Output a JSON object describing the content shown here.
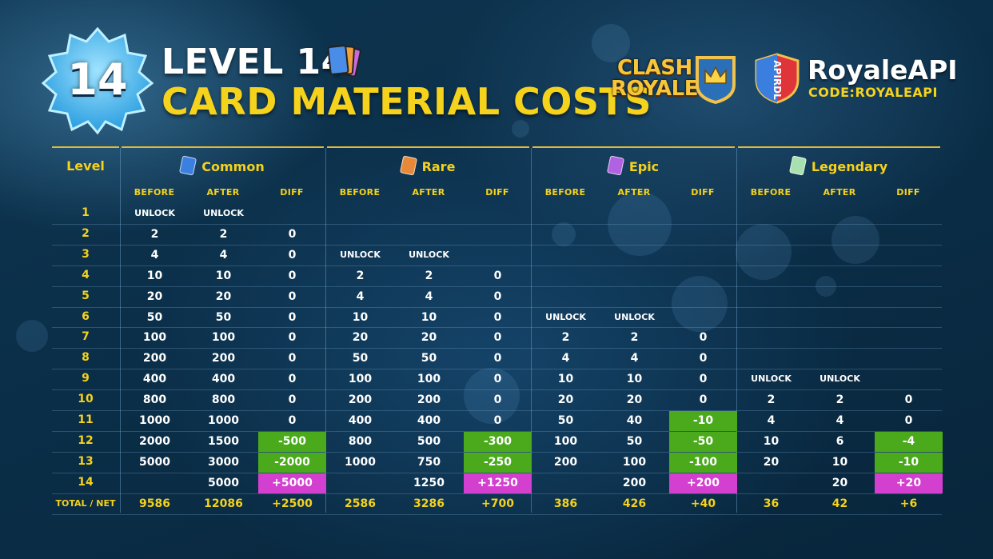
{
  "header": {
    "badge_level": "14",
    "title_line1": "LEVEL 14",
    "title_line2": "CARD MATERIAL COSTS",
    "clash_logo_line1": "CLASH",
    "clash_logo_line2": "ROYALE",
    "api_shield_text": "APIRDL",
    "api_name": "RoyaleAPI",
    "api_code": "CODE:ROYALEAPI"
  },
  "colors": {
    "accent_yellow": "#f5d21c",
    "decrease_green": "#4aaa1c",
    "increase_pink": "#d33fcf"
  },
  "table": {
    "level_header": "Level",
    "sub_headers": [
      "BEFORE",
      "AFTER",
      "DIFF"
    ],
    "groups": [
      {
        "name": "Common",
        "icon": "common-card-icon",
        "icon_color": "#3b7fe0"
      },
      {
        "name": "Rare",
        "icon": "rare-card-icon",
        "icon_color": "#e8893a"
      },
      {
        "name": "Epic",
        "icon": "epic-card-icon",
        "icon_color": "#b062e0"
      },
      {
        "name": "Legendary",
        "icon": "legendary-card-icon",
        "icon_color": "#a8e0b0"
      }
    ],
    "rows": [
      {
        "level": "1",
        "cells": [
          [
            "UNLOCK",
            "UNLOCK",
            ""
          ],
          [
            "",
            "",
            ""
          ],
          [
            "",
            "",
            ""
          ],
          [
            "",
            "",
            ""
          ]
        ]
      },
      {
        "level": "2",
        "cells": [
          [
            "2",
            "2",
            "0"
          ],
          [
            "",
            "",
            ""
          ],
          [
            "",
            "",
            ""
          ],
          [
            "",
            "",
            ""
          ]
        ]
      },
      {
        "level": "3",
        "cells": [
          [
            "4",
            "4",
            "0"
          ],
          [
            "UNLOCK",
            "UNLOCK",
            ""
          ],
          [
            "",
            "",
            ""
          ],
          [
            "",
            "",
            ""
          ]
        ]
      },
      {
        "level": "4",
        "cells": [
          [
            "10",
            "10",
            "0"
          ],
          [
            "2",
            "2",
            "0"
          ],
          [
            "",
            "",
            ""
          ],
          [
            "",
            "",
            ""
          ]
        ]
      },
      {
        "level": "5",
        "cells": [
          [
            "20",
            "20",
            "0"
          ],
          [
            "4",
            "4",
            "0"
          ],
          [
            "",
            "",
            ""
          ],
          [
            "",
            "",
            ""
          ]
        ]
      },
      {
        "level": "6",
        "cells": [
          [
            "50",
            "50",
            "0"
          ],
          [
            "10",
            "10",
            "0"
          ],
          [
            "UNLOCK",
            "UNLOCK",
            ""
          ],
          [
            "",
            "",
            ""
          ]
        ]
      },
      {
        "level": "7",
        "cells": [
          [
            "100",
            "100",
            "0"
          ],
          [
            "20",
            "20",
            "0"
          ],
          [
            "2",
            "2",
            "0"
          ],
          [
            "",
            "",
            ""
          ]
        ]
      },
      {
        "level": "8",
        "cells": [
          [
            "200",
            "200",
            "0"
          ],
          [
            "50",
            "50",
            "0"
          ],
          [
            "4",
            "4",
            "0"
          ],
          [
            "",
            "",
            ""
          ]
        ]
      },
      {
        "level": "9",
        "cells": [
          [
            "400",
            "400",
            "0"
          ],
          [
            "100",
            "100",
            "0"
          ],
          [
            "10",
            "10",
            "0"
          ],
          [
            "UNLOCK",
            "UNLOCK",
            ""
          ]
        ]
      },
      {
        "level": "10",
        "cells": [
          [
            "800",
            "800",
            "0"
          ],
          [
            "200",
            "200",
            "0"
          ],
          [
            "20",
            "20",
            "0"
          ],
          [
            "2",
            "2",
            "0"
          ]
        ]
      },
      {
        "level": "11",
        "cells": [
          [
            "1000",
            "1000",
            "0"
          ],
          [
            "400",
            "400",
            "0"
          ],
          [
            "50",
            "40",
            "-10"
          ],
          [
            "4",
            "4",
            "0"
          ]
        ]
      },
      {
        "level": "12",
        "cells": [
          [
            "2000",
            "1500",
            "-500"
          ],
          [
            "800",
            "500",
            "-300"
          ],
          [
            "100",
            "50",
            "-50"
          ],
          [
            "10",
            "6",
            "-4"
          ]
        ]
      },
      {
        "level": "13",
        "cells": [
          [
            "5000",
            "3000",
            "-2000"
          ],
          [
            "1000",
            "750",
            "-250"
          ],
          [
            "200",
            "100",
            "-100"
          ],
          [
            "20",
            "10",
            "-10"
          ]
        ]
      },
      {
        "level": "14",
        "cells": [
          [
            "",
            "5000",
            "+5000"
          ],
          [
            "",
            "1250",
            "+1250"
          ],
          [
            "",
            "200",
            "+200"
          ],
          [
            "",
            "20",
            "+20"
          ]
        ]
      }
    ],
    "total": {
      "label": "TOTAL / NET",
      "cells": [
        [
          "9586",
          "12086",
          "+2500"
        ],
        [
          "2586",
          "3286",
          "+700"
        ],
        [
          "386",
          "426",
          "+40"
        ],
        [
          "36",
          "42",
          "+6"
        ]
      ]
    }
  }
}
